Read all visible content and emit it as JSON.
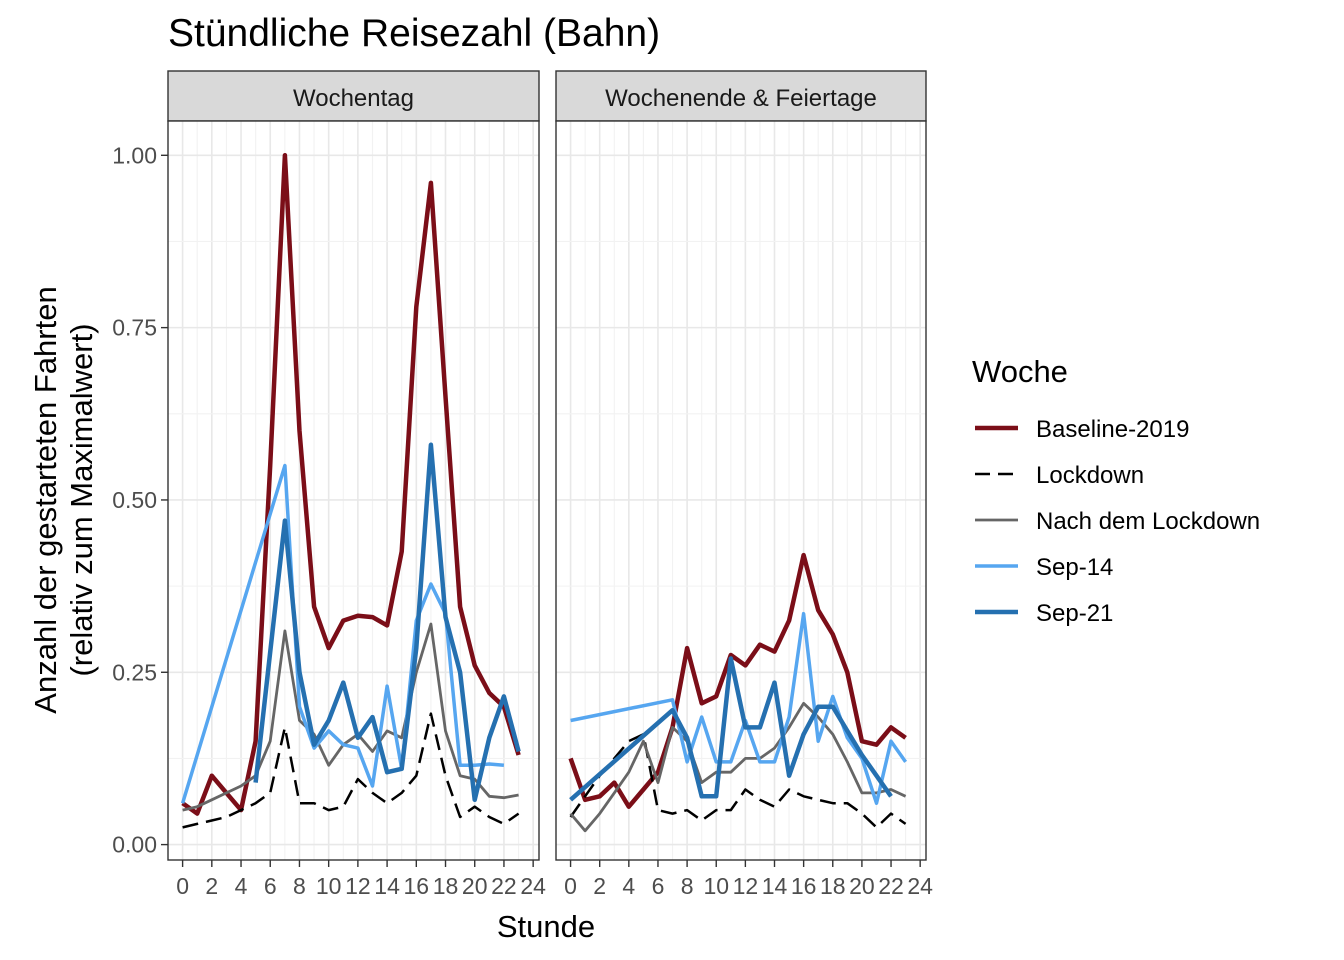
{
  "chart_data": {
    "type": "line",
    "title": "Stündliche Reisezahl (Bahn)",
    "xlabel": "Stunde",
    "ylabel_line1": "Anzahl der gestarteten Fahrten",
    "ylabel_line2": "(relativ zum Maximalwert)",
    "xlim": [
      -1,
      24.4
    ],
    "ylim": [
      -0.02,
      1.045
    ],
    "x_ticks": [
      0,
      2,
      4,
      6,
      8,
      10,
      12,
      14,
      16,
      18,
      20,
      22,
      24
    ],
    "x_tick_labels": [
      "0",
      "2",
      "4",
      "6",
      "8",
      "10",
      "12",
      "14",
      "16",
      "18",
      "20",
      "22",
      "24"
    ],
    "y_ticks": [
      0,
      0.25,
      0.5,
      0.75,
      1.0
    ],
    "y_tick_labels": [
      "0.00",
      "0.25",
      "0.50",
      "0.75",
      "1.00"
    ],
    "grid": true,
    "legend": {
      "title": "Woche",
      "placement": "right",
      "entries": [
        "Baseline-2019",
        "Lockdown",
        "Nach dem Lockdown",
        "Sep-14",
        "Sep-21"
      ]
    },
    "series_styles": [
      {
        "name": "Baseline-2019",
        "color": "#7b0e18",
        "width": 4.5,
        "dash": ""
      },
      {
        "name": "Lockdown",
        "color": "#000000",
        "width": 2.5,
        "dash": "16,8"
      },
      {
        "name": "Nach dem Lockdown",
        "color": "#666666",
        "width": 2.8,
        "dash": ""
      },
      {
        "name": "Sep-14",
        "color": "#56a6f0",
        "width": 3.5,
        "dash": ""
      },
      {
        "name": "Sep-21",
        "color": "#2570b0",
        "width": 4.5,
        "dash": ""
      }
    ],
    "panels": [
      {
        "label": "Wochentag",
        "series": [
          {
            "name": "Baseline-2019",
            "x": [
              0,
              1,
              2,
              3,
              4,
              5,
              6,
              7,
              8,
              9,
              10,
              11,
              12,
              13,
              14,
              15,
              16,
              17,
              18,
              19,
              20,
              21,
              22,
              23
            ],
            "values": [
              0.06,
              0.045,
              0.1,
              0.075,
              0.05,
              0.15,
              0.55,
              1.0,
              0.6,
              0.345,
              0.285,
              0.325,
              0.332,
              0.33,
              0.318,
              0.425,
              0.78,
              0.96,
              0.65,
              0.345,
              0.26,
              0.22,
              0.2,
              0.13
            ]
          },
          {
            "name": "Lockdown",
            "x": [
              0,
              1,
              2,
              3,
              4,
              5,
              6,
              7,
              8,
              9,
              10,
              11,
              12,
              13,
              14,
              15,
              16,
              17,
              18,
              19,
              20,
              21,
              22,
              23
            ],
            "values": [
              0.025,
              0.03,
              0.035,
              0.04,
              0.05,
              0.06,
              0.075,
              0.17,
              0.06,
              0.06,
              0.05,
              0.055,
              0.095,
              0.075,
              0.06,
              0.075,
              0.1,
              0.19,
              0.1,
              0.04,
              0.055,
              0.04,
              0.03,
              0.045
            ]
          },
          {
            "name": "Nach dem Lockdown",
            "x": [
              0,
              1,
              2,
              3,
              4,
              5,
              6,
              7,
              8,
              9,
              10,
              11,
              12,
              13,
              14,
              15,
              16,
              17,
              18,
              19,
              20,
              21,
              22,
              23
            ],
            "values": [
              0.05,
              0.055,
              0.065,
              0.075,
              0.085,
              0.1,
              0.15,
              0.31,
              0.18,
              0.16,
              0.115,
              0.145,
              0.16,
              0.135,
              0.165,
              0.155,
              0.25,
              0.32,
              0.165,
              0.1,
              0.095,
              0.07,
              0.068,
              0.072
            ]
          },
          {
            "name": "Sep-14",
            "x": [
              0,
              7,
              8,
              9,
              10,
              11,
              12,
              13,
              14,
              15,
              16,
              17,
              18,
              19,
              20,
              21,
              22
            ],
            "values": [
              0.06,
              0.55,
              0.2,
              0.14,
              0.165,
              0.145,
              0.14,
              0.085,
              0.23,
              0.11,
              0.325,
              0.378,
              0.335,
              0.115,
              0.115,
              0.117,
              0.115
            ]
          },
          {
            "name": "Sep-21",
            "x": [
              5,
              7,
              8,
              9,
              10,
              11,
              12,
              13,
              14,
              15,
              16,
              17,
              18,
              19,
              20,
              21,
              22,
              23
            ],
            "values": [
              0.09,
              0.47,
              0.25,
              0.145,
              0.18,
              0.235,
              0.155,
              0.185,
              0.105,
              0.11,
              0.285,
              0.58,
              0.33,
              0.25,
              0.065,
              0.155,
              0.215,
              0.135
            ]
          }
        ]
      },
      {
        "label": "Wochenende & Feiertage",
        "series": [
          {
            "name": "Baseline-2019",
            "x": [
              0,
              1,
              2,
              3,
              4,
              5,
              6,
              7,
              8,
              9,
              10,
              11,
              12,
              13,
              14,
              15,
              16,
              17,
              18,
              19,
              20,
              21,
              22,
              23
            ],
            "values": [
              0.125,
              0.065,
              0.07,
              0.09,
              0.055,
              0.08,
              0.105,
              0.17,
              0.285,
              0.205,
              0.215,
              0.275,
              0.26,
              0.29,
              0.28,
              0.325,
              0.42,
              0.34,
              0.305,
              0.25,
              0.15,
              0.145,
              0.17,
              0.155
            ]
          },
          {
            "name": "Lockdown",
            "x": [
              0,
              1,
              2,
              3,
              4,
              5,
              6,
              7,
              8,
              9,
              10,
              11,
              12,
              13,
              14,
              15,
              16,
              17,
              18,
              19,
              20,
              21,
              22,
              23
            ],
            "values": [
              0.04,
              0.07,
              0.1,
              0.125,
              0.15,
              0.16,
              0.05,
              0.045,
              0.05,
              0.035,
              0.05,
              0.05,
              0.08,
              0.065,
              0.055,
              0.08,
              0.07,
              0.065,
              0.06,
              0.06,
              0.045,
              0.025,
              0.045,
              0.03
            ]
          },
          {
            "name": "Nach dem Lockdown",
            "x": [
              0,
              1,
              2,
              3,
              4,
              5,
              6,
              7,
              8,
              9,
              10,
              11,
              12,
              13,
              14,
              15,
              16,
              17,
              18,
              19,
              20,
              21,
              22,
              23
            ],
            "values": [
              0.045,
              0.02,
              0.045,
              0.075,
              0.105,
              0.15,
              0.09,
              0.17,
              0.15,
              0.09,
              0.105,
              0.105,
              0.125,
              0.125,
              0.14,
              0.17,
              0.205,
              0.185,
              0.16,
              0.12,
              0.075,
              0.075,
              0.08,
              0.07
            ]
          },
          {
            "name": "Sep-14",
            "x": [
              0,
              7,
              8,
              9,
              10,
              11,
              12,
              13,
              14,
              15,
              16,
              17,
              18,
              19,
              20,
              21,
              22,
              23
            ],
            "values": [
              0.18,
              0.21,
              0.12,
              0.185,
              0.12,
              0.12,
              0.18,
              0.12,
              0.12,
              0.185,
              0.335,
              0.15,
              0.215,
              0.155,
              0.125,
              0.06,
              0.15,
              0.12
            ]
          },
          {
            "name": "Sep-21",
            "x": [
              0,
              7,
              8,
              9,
              10,
              11,
              12,
              13,
              14,
              15,
              16,
              17,
              18,
              19,
              20,
              21,
              22
            ],
            "values": [
              0.065,
              0.195,
              0.155,
              0.07,
              0.07,
              0.27,
              0.17,
              0.17,
              0.235,
              0.1,
              0.16,
              0.2,
              0.2,
              0.165,
              0.13,
              0.1,
              0.07
            ]
          }
        ]
      }
    ]
  }
}
